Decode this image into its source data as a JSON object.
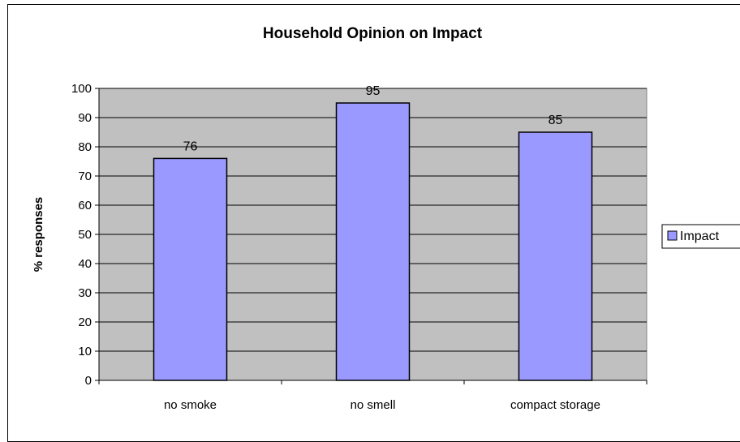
{
  "chart_data": {
    "type": "bar",
    "title": "Household Opinion on Impact",
    "xlabel": "",
    "ylabel": "% responses",
    "categories": [
      "no smoke",
      "no smell",
      "compact storage"
    ],
    "series": [
      {
        "name": "Impact",
        "values": [
          76,
          95,
          85
        ]
      }
    ],
    "ylim": [
      0,
      100
    ],
    "yticks": [
      0,
      10,
      20,
      30,
      40,
      50,
      60,
      70,
      80,
      90,
      100
    ],
    "grid": true,
    "legend": "right",
    "colors": {
      "plot_background": "#c0c0c0",
      "bar_fill": "#9999ff",
      "bar_stroke": "#000000"
    }
  }
}
